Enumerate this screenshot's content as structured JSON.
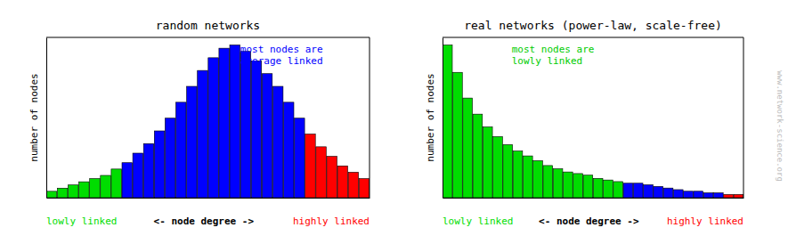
{
  "chart_data": [
    {
      "type": "bar",
      "title": "random networks",
      "ylabel": "number of nodes",
      "categories": [
        null,
        null,
        null,
        null,
        null,
        null,
        null,
        null,
        null,
        null,
        null,
        null,
        null,
        null,
        null,
        null,
        null,
        null,
        null,
        null,
        null,
        null,
        null,
        null,
        null,
        null,
        null,
        null,
        null,
        null
      ],
      "values": [
        2,
        3,
        4,
        5,
        6,
        7,
        9,
        11,
        14,
        17,
        21,
        25,
        30,
        35,
        40,
        44,
        47,
        48,
        46,
        43,
        39,
        35,
        30,
        25,
        20,
        16,
        13,
        10,
        8,
        6
      ],
      "colors": [
        "#00dd00",
        "#00dd00",
        "#00dd00",
        "#00dd00",
        "#00dd00",
        "#00dd00",
        "#00dd00",
        "#0000ff",
        "#0000ff",
        "#0000ff",
        "#0000ff",
        "#0000ff",
        "#0000ff",
        "#0000ff",
        "#0000ff",
        "#0000ff",
        "#0000ff",
        "#0000ff",
        "#0000ff",
        "#0000ff",
        "#0000ff",
        "#0000ff",
        "#0000ff",
        "#0000ff",
        "#ff0000",
        "#ff0000",
        "#ff0000",
        "#ff0000",
        "#ff0000",
        "#ff0000"
      ],
      "ylim": [
        0,
        50.4
      ],
      "tick_labels": false,
      "grid": false,
      "xlabel": [
        {
          "text": "lowly linked",
          "color": "#00dd00"
        },
        {
          "text": " <- node degree ->",
          "color": "#000000"
        },
        {
          "text": " highly linked",
          "color": "#ff0000"
        }
      ],
      "annotations": [
        {
          "text": "most nodes are\naverage linked",
          "color": "#0000ff"
        }
      ]
    },
    {
      "type": "bar",
      "title": "real networks (power-law, scale-free)",
      "ylabel": "number of nodes",
      "categories": [
        null,
        null,
        null,
        null,
        null,
        null,
        null,
        null,
        null,
        null,
        null,
        null,
        null,
        null,
        null,
        null,
        null,
        null,
        null,
        null,
        null,
        null,
        null,
        null,
        null,
        null,
        null,
        null,
        null,
        null
      ],
      "values": [
        95,
        78,
        62,
        52,
        44,
        38,
        33,
        29,
        26,
        23,
        20,
        18,
        16,
        15,
        14,
        12,
        11,
        10,
        9,
        9,
        8,
        7,
        6,
        5,
        4,
        4,
        3,
        3,
        2,
        2
      ],
      "colors": [
        "#00dd00",
        "#00dd00",
        "#00dd00",
        "#00dd00",
        "#00dd00",
        "#00dd00",
        "#00dd00",
        "#00dd00",
        "#00dd00",
        "#00dd00",
        "#00dd00",
        "#00dd00",
        "#00dd00",
        "#00dd00",
        "#00dd00",
        "#00dd00",
        "#00dd00",
        "#00dd00",
        "#0000ff",
        "#0000ff",
        "#0000ff",
        "#0000ff",
        "#0000ff",
        "#0000ff",
        "#0000ff",
        "#0000ff",
        "#0000ff",
        "#0000ff",
        "#ff0000",
        "#ff0000"
      ],
      "ylim": [
        0,
        99.75
      ],
      "tick_labels": false,
      "grid": false,
      "xlabel": [
        {
          "text": "lowly linked",
          "color": "#00dd00"
        },
        {
          "text": " <- node degree ->",
          "color": "#000000"
        },
        {
          "text": " highly linked",
          "color": "#ff0000"
        }
      ],
      "annotations": [
        {
          "text": "most nodes are\nlowly linked",
          "color": "#00cc00"
        },
        {
          "text": "www.network-science.org",
          "color": "#bbbbbb"
        }
      ]
    }
  ]
}
